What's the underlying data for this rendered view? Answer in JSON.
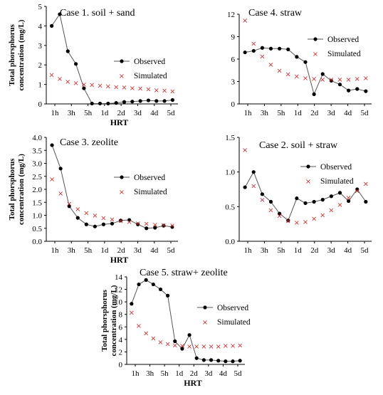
{
  "colors": {
    "observed": "#000000",
    "observed_line": "#555555",
    "simulated": "#cc2b2b"
  },
  "chart_data": [
    {
      "type": "line",
      "title": "Case 1. soil + sand",
      "xlabel": "HRT",
      "ylabel": "Total phorsphorus concentration (mg/L)",
      "ylim": [
        0,
        5
      ],
      "yticks": [
        "0",
        "1",
        "2",
        "3",
        "4",
        "5"
      ],
      "xticks": [
        "1h",
        "3h",
        "5h",
        "1d",
        "2d",
        "3d",
        "4d",
        "5d"
      ],
      "legend_placement": "right",
      "series": [
        {
          "name": "Observed",
          "values": [
            4.0,
            4.6,
            2.7,
            2.05,
            0.8,
            0.02,
            0.02,
            0.02,
            0.05,
            0.1,
            0.12,
            0.15,
            0.18,
            0.15,
            0.15,
            0.2
          ]
        },
        {
          "name": "Simulated",
          "values": [
            1.5,
            1.3,
            1.15,
            1.08,
            1.0,
            0.98,
            0.95,
            0.92,
            0.88,
            0.85,
            0.82,
            0.8,
            0.76,
            0.72,
            0.69,
            0.66
          ]
        }
      ]
    },
    {
      "type": "line",
      "title": "Case 4. straw",
      "xlabel": "",
      "ylabel": "",
      "ylim": [
        0,
        12
      ],
      "yticks": [
        "0",
        "3",
        "6",
        "9",
        "12"
      ],
      "xticks": [
        "1h",
        "3h",
        "5h",
        "1d",
        "2d",
        "3d",
        "4d",
        "5d"
      ],
      "legend_placement": "top-right",
      "series": [
        {
          "name": "Observed",
          "values": [
            6.9,
            7.1,
            7.5,
            7.4,
            7.4,
            7.3,
            6.3,
            5.6,
            1.3,
            4.0,
            3.1,
            2.6,
            1.8,
            2.0,
            1.7
          ]
        },
        {
          "name": "Simulated",
          "values": [
            11.2,
            8.1,
            6.4,
            5.3,
            4.5,
            4.0,
            3.7,
            3.5,
            3.4,
            3.3,
            3.3,
            3.3,
            3.3,
            3.4,
            3.5
          ]
        }
      ]
    },
    {
      "type": "line",
      "title": "Case 3. zeolite",
      "xlabel": "HRT",
      "ylabel": "Total phorsphorus concentration (mg/L)",
      "ylim": [
        0,
        4
      ],
      "yticks": [
        "0.0",
        "0.5",
        "1.0",
        "1.5",
        "2.0",
        "2.5",
        "3.0",
        "3.5",
        "4.0"
      ],
      "xticks": [
        "1h",
        "3h",
        "5h",
        "1d",
        "2d",
        "3d",
        "4d",
        "5d"
      ],
      "legend_placement": "right",
      "series": [
        {
          "name": "Observed",
          "values": [
            3.7,
            2.8,
            1.35,
            0.9,
            0.65,
            0.57,
            0.65,
            0.68,
            0.8,
            0.82,
            0.65,
            0.5,
            0.52,
            0.6,
            0.55
          ]
        },
        {
          "name": "Simulated",
          "values": [
            2.4,
            1.85,
            1.45,
            1.25,
            1.1,
            1.0,
            0.9,
            0.85,
            0.8,
            0.75,
            0.7,
            0.68,
            0.65,
            0.63,
            0.62
          ]
        }
      ]
    },
    {
      "type": "line",
      "title": "Case 2. soil + straw",
      "xlabel": "",
      "ylabel": "",
      "ylim": [
        0,
        1.5
      ],
      "yticks": [
        "0.0",
        "0.5",
        "1.0",
        "1.5"
      ],
      "xticks": [
        "1h",
        "3h",
        "5h",
        "1d",
        "2d",
        "3d",
        "4d",
        "5d"
      ],
      "legend_placement": "right",
      "series": [
        {
          "name": "Observed",
          "values": [
            0.78,
            1.0,
            0.68,
            0.57,
            0.4,
            0.3,
            0.62,
            0.55,
            0.57,
            0.6,
            0.65,
            0.7,
            0.58,
            0.75,
            0.57
          ]
        },
        {
          "name": "Simulated",
          "values": [
            1.32,
            0.8,
            0.6,
            0.45,
            0.37,
            0.3,
            0.27,
            0.28,
            0.33,
            0.38,
            0.45,
            0.53,
            0.63,
            0.73,
            0.83
          ]
        }
      ]
    },
    {
      "type": "line",
      "title": "Case 5. straw+ zeolite",
      "xlabel": "HRT",
      "ylabel": "Total phorsphorus concentration (mg/L)",
      "ylim": [
        0,
        14
      ],
      "yticks": [
        "0",
        "2",
        "4",
        "6",
        "8",
        "10",
        "12",
        "14"
      ],
      "xticks": [
        "1h",
        "3h",
        "5h",
        "1d",
        "2d",
        "3d",
        "4d",
        "5d"
      ],
      "legend_placement": "right",
      "series": [
        {
          "name": "Observed",
          "values": [
            9.7,
            12.8,
            13.5,
            12.8,
            12.0,
            11.0,
            3.7,
            2.5,
            4.7,
            1.0,
            0.7,
            0.7,
            0.6,
            0.5,
            0.5,
            0.6
          ]
        },
        {
          "name": "Simulated",
          "values": [
            8.3,
            6.2,
            5.0,
            4.2,
            3.6,
            3.3,
            3.1,
            3.0,
            2.9,
            2.9,
            2.9,
            2.9,
            2.9,
            3.0,
            3.0,
            3.1
          ]
        }
      ]
    }
  ]
}
